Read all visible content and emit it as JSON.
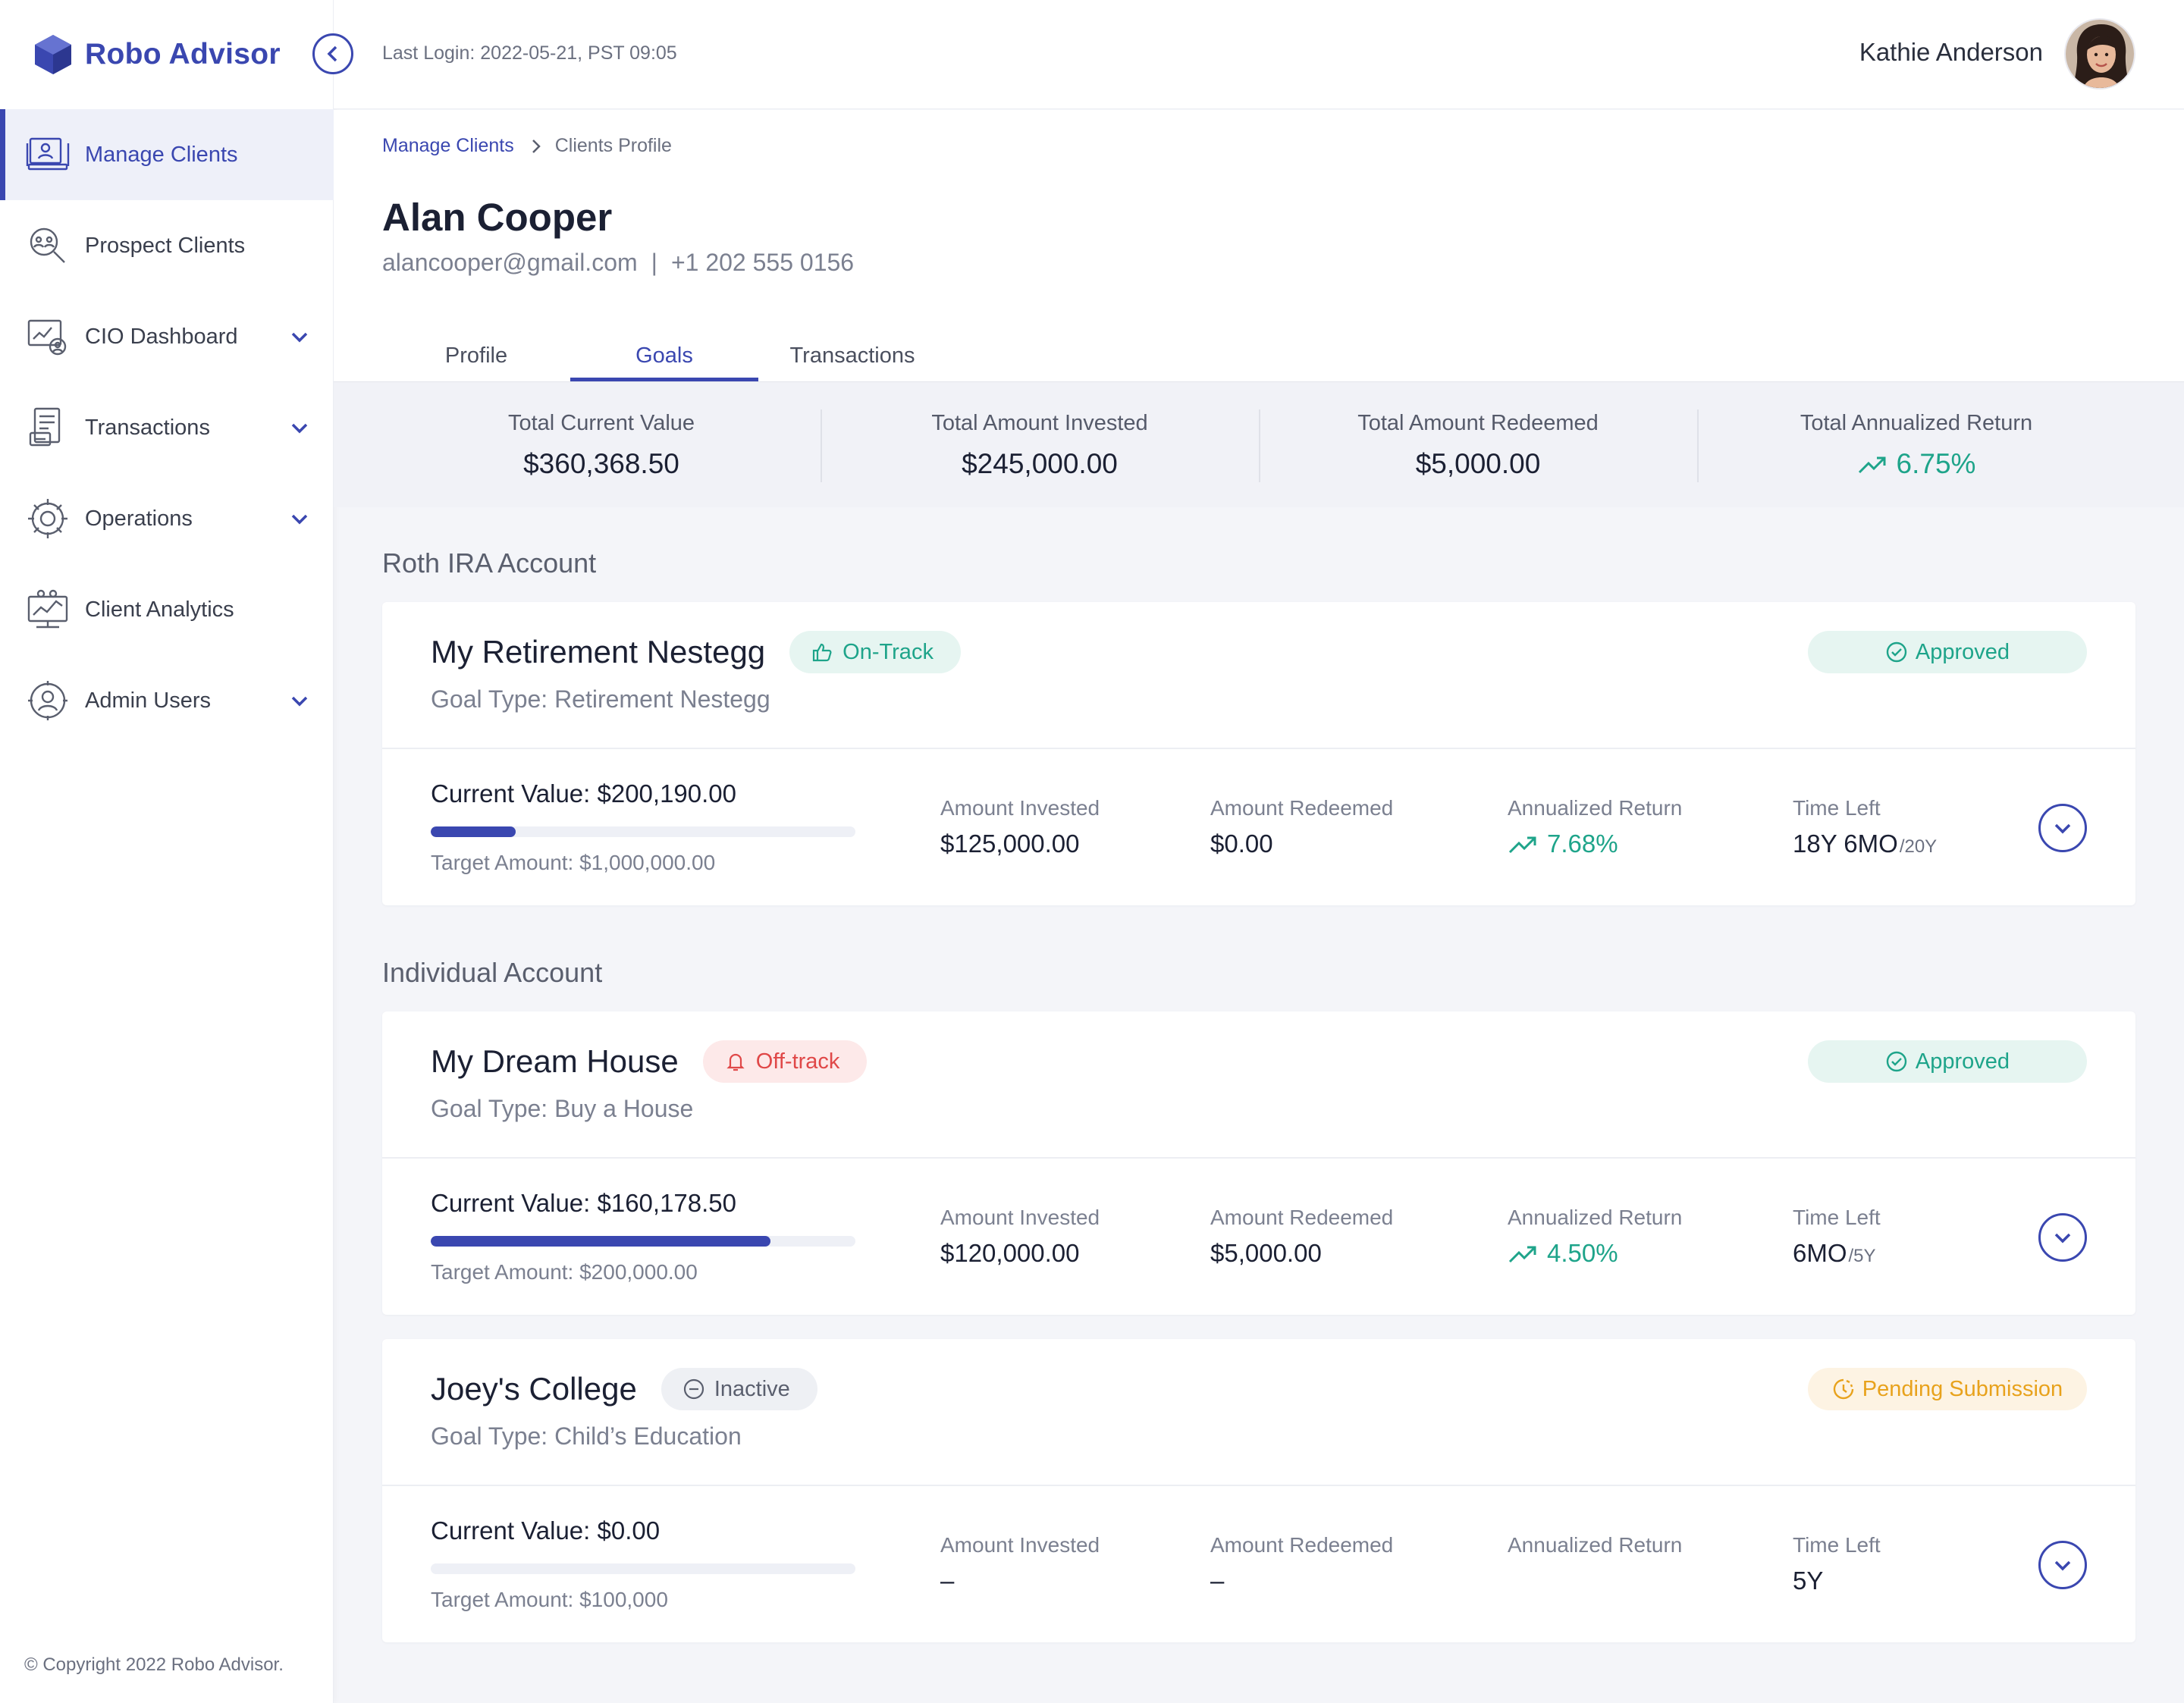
{
  "app": {
    "name": "Robo Advisor",
    "copyright": "© Copyright 2022 Robo Advisor."
  },
  "sidebar": {
    "items": [
      {
        "label": "Manage Clients",
        "icon": "manage-clients-icon",
        "active": true
      },
      {
        "label": "Prospect Clients",
        "icon": "prospect-clients-icon"
      },
      {
        "label": "CIO Dashboard",
        "icon": "cio-dashboard-icon",
        "expandable": true
      },
      {
        "label": "Transactions",
        "icon": "transactions-icon",
        "expandable": true
      },
      {
        "label": "Operations",
        "icon": "operations-icon",
        "expandable": true
      },
      {
        "label": "Client Analytics",
        "icon": "client-analytics-icon"
      },
      {
        "label": "Admin Users",
        "icon": "admin-users-icon",
        "expandable": true
      }
    ]
  },
  "topbar": {
    "last_login": "Last Login: 2022-05-21, PST 09:05",
    "user_name": "Kathie Anderson"
  },
  "breadcrumb": {
    "parent": "Manage Clients",
    "current": "Clients Profile"
  },
  "client": {
    "name": "Alan Cooper",
    "email": "alancooper@gmail.com",
    "separator": "|",
    "phone": "+1 202 555 0156"
  },
  "tabs": [
    {
      "label": "Profile"
    },
    {
      "label": "Goals",
      "active": true
    },
    {
      "label": "Transactions"
    }
  ],
  "summary": {
    "current_value": {
      "label": "Total Current Value",
      "value": "$360,368.50"
    },
    "invested": {
      "label": "Total Amount Invested",
      "value": "$245,000.00"
    },
    "redeemed": {
      "label": "Total Amount Redeemed",
      "value": "$5,000.00"
    },
    "return": {
      "label": "Total Annualized Return",
      "value": "6.75%"
    }
  },
  "labels": {
    "amount_invested": "Amount Invested",
    "amount_redeemed": "Amount Redeemed",
    "annualized_return": "Annualized Return",
    "time_left": "Time Left"
  },
  "sections": [
    {
      "title": "Roth IRA Account",
      "goals": [
        {
          "name": "My Retirement Nestegg",
          "track": "On-Track",
          "goal_type": "Goal Type: Retirement Nestegg",
          "status": "Approved",
          "current_value": "Current Value: $200,190.00",
          "progress": 0.2,
          "target": "Target Amount: $1,000,000.00",
          "invested": "$125,000.00",
          "redeemed": "$0.00",
          "return": "7.68%",
          "time_left": "18Y 6MO",
          "time_total": "/20Y"
        }
      ]
    },
    {
      "title": "Individual Account",
      "goals": [
        {
          "name": "My Dream House",
          "track": "Off-track",
          "goal_type": "Goal Type: Buy a House",
          "status": "Approved",
          "current_value": "Current Value: $160,178.50",
          "progress": 0.8,
          "target": "Target Amount: $200,000.00",
          "invested": "$120,000.00",
          "redeemed": "$5,000.00",
          "return": "4.50%",
          "time_left": "6MO",
          "time_total": "/5Y"
        },
        {
          "name": "Joey's College",
          "track": "Inactive",
          "goal_type": "Goal Type: Child’s Education",
          "status": "Pending Submission",
          "current_value": "Current Value: $0.00",
          "progress": 0,
          "target": "Target Amount: $100,000",
          "invested": "–",
          "redeemed": "–",
          "return": "",
          "time_left": "5Y",
          "time_total": ""
        }
      ]
    }
  ],
  "colors": {
    "accent": "#3a47b0",
    "green": "#1ea48a",
    "red": "#e04848",
    "amber": "#e8a21c"
  }
}
